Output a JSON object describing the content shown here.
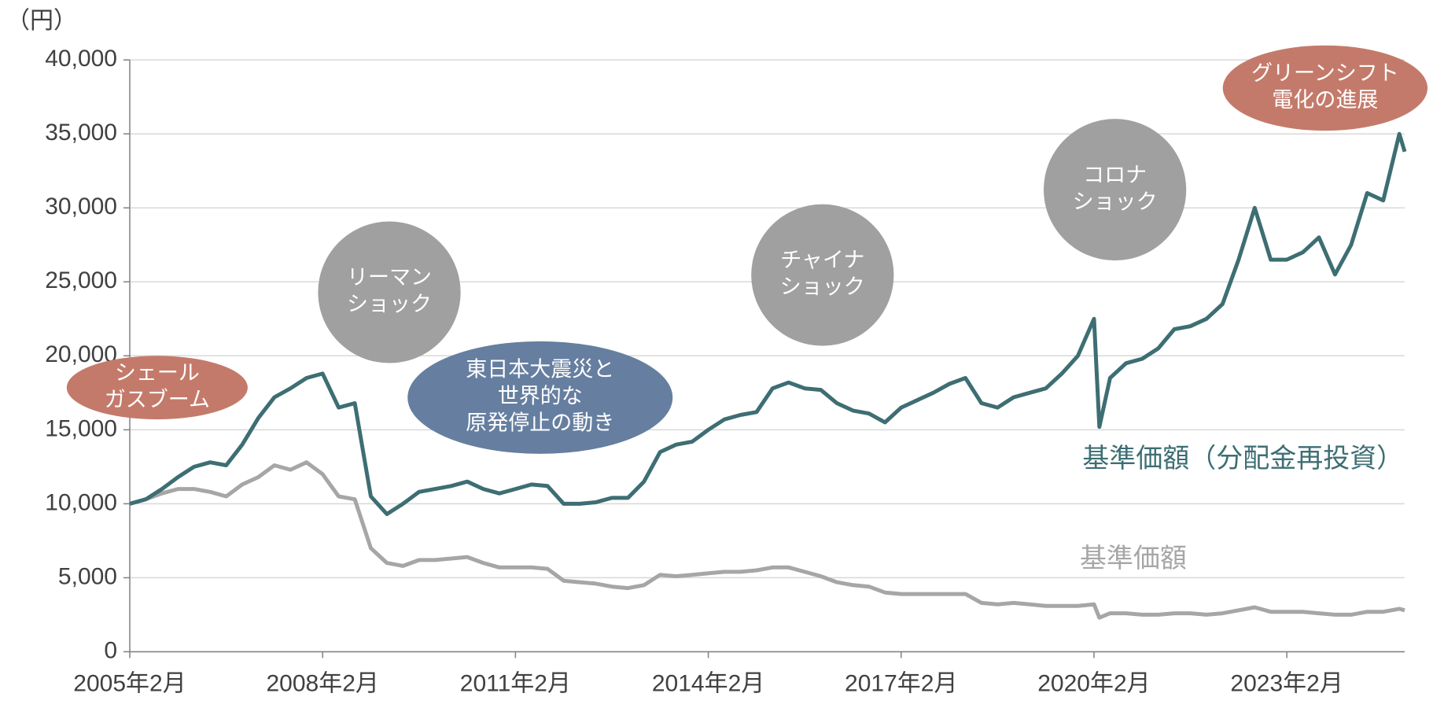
{
  "chart_data": {
    "type": "line",
    "y_unit": "（円）",
    "x": [
      "2005-02",
      "2005-05",
      "2005-08",
      "2005-11",
      "2006-02",
      "2006-05",
      "2006-08",
      "2006-11",
      "2007-02",
      "2007-05",
      "2007-08",
      "2007-11",
      "2008-02",
      "2008-05",
      "2008-08",
      "2008-11",
      "2009-02",
      "2009-05",
      "2009-08",
      "2009-11",
      "2010-02",
      "2010-05",
      "2010-08",
      "2010-11",
      "2011-02",
      "2011-05",
      "2011-08",
      "2011-11",
      "2012-02",
      "2012-05",
      "2012-08",
      "2012-11",
      "2013-02",
      "2013-05",
      "2013-08",
      "2013-11",
      "2014-02",
      "2014-05",
      "2014-08",
      "2014-11",
      "2015-02",
      "2015-05",
      "2015-08",
      "2015-11",
      "2016-02",
      "2016-05",
      "2016-08",
      "2016-11",
      "2017-02",
      "2017-05",
      "2017-08",
      "2017-11",
      "2018-02",
      "2018-05",
      "2018-08",
      "2018-11",
      "2019-02",
      "2019-05",
      "2019-08",
      "2019-11",
      "2020-02",
      "2020-03",
      "2020-05",
      "2020-08",
      "2020-11",
      "2021-02",
      "2021-05",
      "2021-08",
      "2021-11",
      "2022-02",
      "2022-05",
      "2022-08",
      "2022-11",
      "2023-02",
      "2023-05",
      "2023-08",
      "2023-11",
      "2024-02",
      "2024-05",
      "2024-08",
      "2024-11",
      "2024-12"
    ],
    "series": [
      {
        "name": "基準価額（分配金再投資）",
        "color": "#3d6e73",
        "values": [
          10000,
          10300,
          11000,
          11800,
          12500,
          12800,
          12600,
          14000,
          15800,
          17200,
          17800,
          18500,
          18800,
          16500,
          16800,
          10500,
          9300,
          10000,
          10800,
          11000,
          11200,
          11500,
          11000,
          10700,
          11000,
          11300,
          11200,
          10000,
          10000,
          10100,
          10400,
          10400,
          11500,
          13500,
          14000,
          14200,
          15000,
          15700,
          16000,
          16200,
          17800,
          18200,
          17800,
          17700,
          16800,
          16300,
          16100,
          15500,
          16500,
          17000,
          17500,
          18100,
          18500,
          16800,
          16500,
          17200,
          17500,
          17800,
          18800,
          20000,
          22500,
          15200,
          18500,
          19500,
          19800,
          20500,
          21800,
          22000,
          22500,
          23500,
          26500,
          30000,
          26500,
          26500,
          27000,
          28000,
          25500,
          27500,
          31000,
          30500,
          35000,
          33800
        ]
      },
      {
        "name": "基準価額",
        "color": "#a6a6a6",
        "values": [
          10000,
          10300,
          10700,
          11000,
          11000,
          10800,
          10500,
          11300,
          11800,
          12600,
          12300,
          12800,
          12000,
          10500,
          10300,
          7000,
          6000,
          5800,
          6200,
          6200,
          6300,
          6400,
          6000,
          5700,
          5700,
          5700,
          5600,
          4800,
          4700,
          4600,
          4400,
          4300,
          4500,
          5200,
          5100,
          5200,
          5300,
          5400,
          5400,
          5500,
          5700,
          5700,
          5400,
          5100,
          4700,
          4500,
          4400,
          4000,
          3900,
          3900,
          3900,
          3900,
          3900,
          3300,
          3200,
          3300,
          3200,
          3100,
          3100,
          3100,
          3200,
          2300,
          2600,
          2600,
          2500,
          2500,
          2600,
          2600,
          2500,
          2600,
          2800,
          3000,
          2700,
          2700,
          2700,
          2600,
          2500,
          2500,
          2700,
          2700,
          2900,
          2800
        ]
      }
    ],
    "xlim": [
      "2005-02",
      "2024-12"
    ],
    "xticks": [
      {
        "value": "2005-02",
        "label": "2005年2月"
      },
      {
        "value": "2008-02",
        "label": "2008年2月"
      },
      {
        "value": "2011-02",
        "label": "2011年2月"
      },
      {
        "value": "2014-02",
        "label": "2014年2月"
      },
      {
        "value": "2017-02",
        "label": "2017年2月"
      },
      {
        "value": "2020-02",
        "label": "2020年2月"
      },
      {
        "value": "2023-02",
        "label": "2023年2月"
      }
    ],
    "ylim": [
      0,
      40000
    ],
    "yticks": [
      0,
      {
        "value": 5000,
        "label": "5,000"
      },
      {
        "value": 10000,
        "label": "10,000"
      },
      {
        "value": 15000,
        "label": "15,000"
      },
      {
        "value": 20000,
        "label": "20,000"
      },
      {
        "value": 25000,
        "label": "25,000"
      },
      {
        "value": 30000,
        "label": "30,000"
      },
      {
        "value": 35000,
        "label": "35,000"
      },
      {
        "value": 40000,
        "label": "40,000"
      }
    ],
    "grid": true,
    "annotations": [
      {
        "lines": [
          "シェール",
          "ガスブーム"
        ],
        "color": "#c47a6a"
      },
      {
        "lines": [
          "リーマン",
          "ショック"
        ],
        "color": "#a0a0a0"
      },
      {
        "lines": [
          "東日本大震災と",
          "世界的な",
          "原発停止の動き"
        ],
        "color": "#667fa0"
      },
      {
        "lines": [
          "チャイナ",
          "ショック"
        ],
        "color": "#a0a0a0"
      },
      {
        "lines": [
          "コロナ",
          "ショック"
        ],
        "color": "#a0a0a0"
      },
      {
        "lines": [
          "グリーンシフト",
          "電化の進展"
        ],
        "color": "#c47a6a"
      }
    ]
  }
}
